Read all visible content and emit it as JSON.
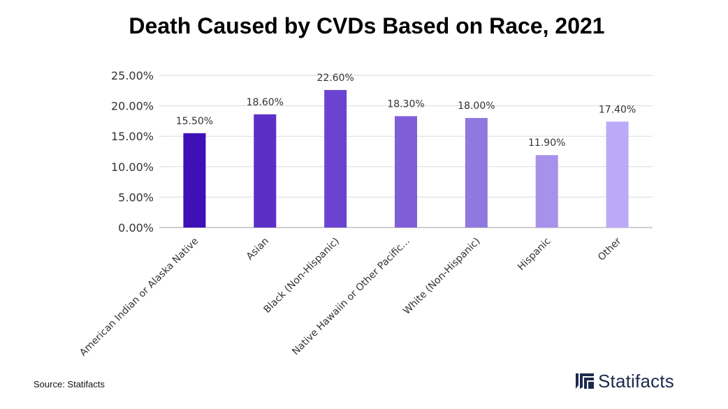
{
  "chart_data": {
    "type": "bar",
    "title": "Death Caused by CVDs Based on Race, 2021",
    "xlabel": "",
    "ylabel": "",
    "categories": [
      "American Indian or Alaska Native",
      "Asian",
      "Black (Non-Hispanic)",
      "Native Hawaiin or Other Pacific...",
      "White (Non-Hispanic)",
      "Hispanic",
      "Other"
    ],
    "values": [
      15.5,
      18.6,
      22.6,
      18.3,
      18.0,
      11.9,
      17.4
    ],
    "data_labels": [
      "15.50%",
      "18.60%",
      "22.60%",
      "18.30%",
      "18.00%",
      "11.90%",
      "17.40%"
    ],
    "ylim": [
      0,
      25
    ],
    "yticks": [
      0,
      5,
      10,
      15,
      20,
      25
    ],
    "ytick_labels": [
      "0.00%",
      "5.00%",
      "10.00%",
      "15.00%",
      "20.00%",
      "25.00%"
    ],
    "grid": true,
    "bar_colors": [
      "#3f10b8",
      "#5b2fc6",
      "#6a44d0",
      "#7f5ed9",
      "#9078e0",
      "#a791ea",
      "#bcaaf8"
    ]
  },
  "footer": {
    "source": "Source: Statifacts",
    "logo_text": "Statifacts"
  },
  "colors": {
    "grid": "#d9d9d9",
    "axis": "#bfbfbf",
    "logo": "#1b2a4e"
  }
}
